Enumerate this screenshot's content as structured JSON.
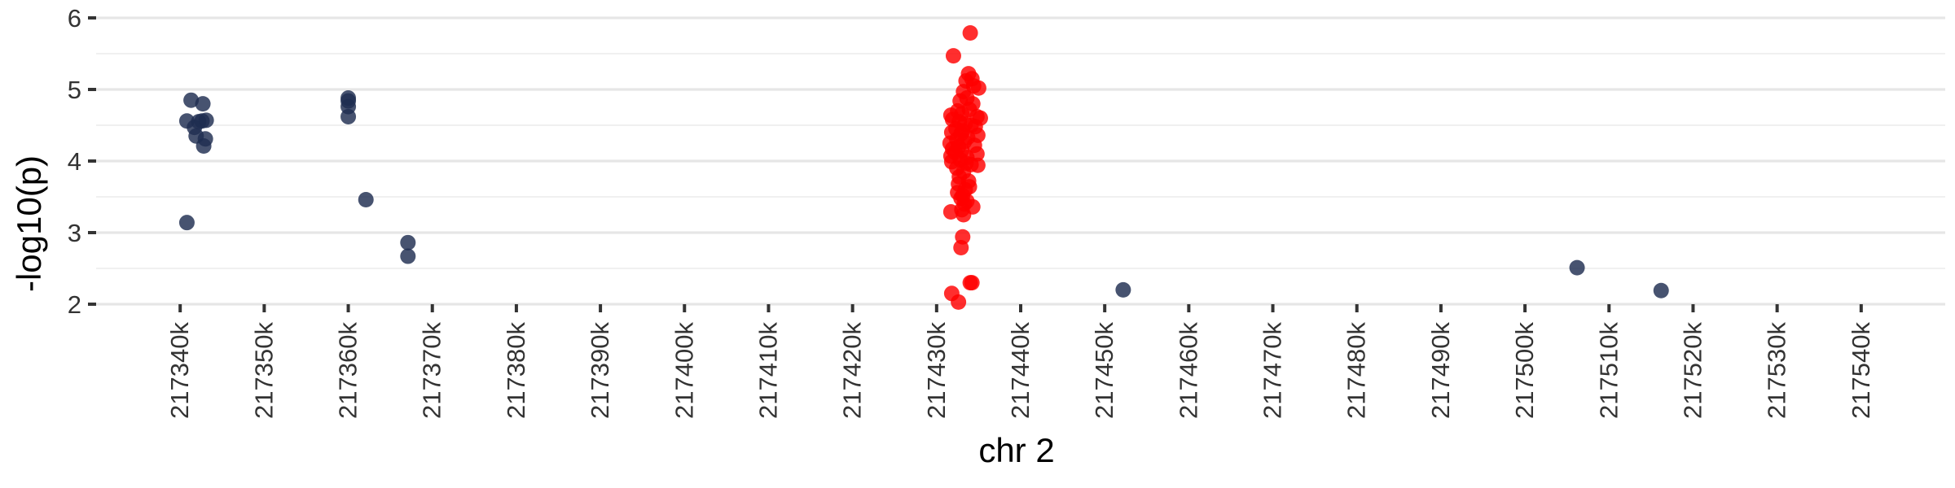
{
  "chart_data": {
    "type": "scatter",
    "title": "",
    "xlabel": "chr 2",
    "ylabel": "-log10(p)",
    "xlim": [
      217330,
      217550
    ],
    "ylim": [
      2,
      6
    ],
    "x_unit": "k",
    "x_ticks": [
      217340,
      217350,
      217360,
      217370,
      217380,
      217390,
      217400,
      217410,
      217420,
      217430,
      217440,
      217450,
      217460,
      217470,
      217480,
      217490,
      217500,
      217510,
      217520,
      217530,
      217540
    ],
    "x_tick_labels": [
      "217340k",
      "217350k",
      "217360k",
      "217370k",
      "217380k",
      "217390k",
      "217400k",
      "217410k",
      "217420k",
      "217430k",
      "217440k",
      "217450k",
      "217460k",
      "217470k",
      "217480k",
      "217490k",
      "217500k",
      "217510k",
      "217520k",
      "217530k",
      "217540k"
    ],
    "y_ticks": [
      2,
      3,
      4,
      5,
      6
    ],
    "y_tick_labels": [
      "2",
      "3",
      "4",
      "5",
      "6"
    ],
    "grid": true,
    "legend": "none",
    "series": [
      {
        "color": "#1f2d50",
        "points": [
          [
            217340.8,
            3.14
          ],
          [
            217340.8,
            4.56
          ],
          [
            217341.3,
            4.85
          ],
          [
            217341.7,
            4.47
          ],
          [
            217341.9,
            4.35
          ],
          [
            217342.2,
            4.55
          ],
          [
            217342.6,
            4.56
          ],
          [
            217342.7,
            4.8
          ],
          [
            217342.8,
            4.21
          ],
          [
            217343.0,
            4.31
          ],
          [
            217343.1,
            4.57
          ],
          [
            217360.0,
            4.88
          ],
          [
            217360.0,
            4.84
          ],
          [
            217360.0,
            4.76
          ],
          [
            217360.0,
            4.62
          ],
          [
            217362.1,
            3.46
          ],
          [
            217367.1,
            2.86
          ],
          [
            217367.1,
            2.67
          ],
          [
            217452.2,
            2.2
          ],
          [
            217506.2,
            2.51
          ],
          [
            217516.2,
            2.19
          ]
        ]
      },
      {
        "color": "#ff0000",
        "points": [
          [
            217434.0,
            5.79
          ],
          [
            217432.0,
            5.47
          ],
          [
            217433.8,
            5.22
          ],
          [
            217434.2,
            5.15
          ],
          [
            217433.5,
            5.12
          ],
          [
            217434.4,
            5.05
          ],
          [
            217435.0,
            5.02
          ],
          [
            217433.2,
            4.97
          ],
          [
            217433.6,
            4.88
          ],
          [
            217432.8,
            4.84
          ],
          [
            217434.3,
            4.8
          ],
          [
            217433.9,
            4.72
          ],
          [
            217432.5,
            4.7
          ],
          [
            217433.0,
            4.66
          ],
          [
            217431.7,
            4.64
          ],
          [
            217434.8,
            4.62
          ],
          [
            217435.2,
            4.6
          ],
          [
            217431.9,
            4.58
          ],
          [
            217432.7,
            4.55
          ],
          [
            217433.4,
            4.52
          ],
          [
            217434.1,
            4.5
          ],
          [
            217434.6,
            4.48
          ],
          [
            217432.3,
            4.45
          ],
          [
            217433.1,
            4.42
          ],
          [
            217431.8,
            4.4
          ],
          [
            217432.9,
            4.38
          ],
          [
            217434.9,
            4.36
          ],
          [
            217433.7,
            4.33
          ],
          [
            217432.4,
            4.3
          ],
          [
            217433.3,
            4.27
          ],
          [
            217431.6,
            4.25
          ],
          [
            217434.5,
            4.22
          ],
          [
            217432.6,
            4.2
          ],
          [
            217431.9,
            4.17
          ],
          [
            217433.0,
            4.15
          ],
          [
            217432.2,
            4.12
          ],
          [
            217434.8,
            4.1
          ],
          [
            217431.7,
            4.07
          ],
          [
            217433.6,
            4.05
          ],
          [
            217432.8,
            4.02
          ],
          [
            217431.8,
            3.99
          ],
          [
            217433.5,
            3.97
          ],
          [
            217434.1,
            3.95
          ],
          [
            217434.9,
            3.94
          ],
          [
            217432.4,
            3.9
          ],
          [
            217433.2,
            3.85
          ],
          [
            217432.7,
            3.78
          ],
          [
            217433.8,
            3.72
          ],
          [
            217432.6,
            3.68
          ],
          [
            217433.9,
            3.64
          ],
          [
            217433.4,
            3.6
          ],
          [
            217432.5,
            3.56
          ],
          [
            217433.1,
            3.52
          ],
          [
            217432.9,
            3.48
          ],
          [
            217433.6,
            3.44
          ],
          [
            217433.3,
            3.4
          ],
          [
            217434.3,
            3.36
          ],
          [
            217433.0,
            3.32
          ],
          [
            217431.7,
            3.29
          ],
          [
            217433.2,
            3.25
          ],
          [
            217433.1,
            2.94
          ],
          [
            217432.9,
            2.79
          ],
          [
            217434.0,
            2.3
          ],
          [
            217434.2,
            2.3
          ],
          [
            217431.8,
            2.15
          ],
          [
            217432.6,
            2.03
          ]
        ]
      }
    ]
  }
}
